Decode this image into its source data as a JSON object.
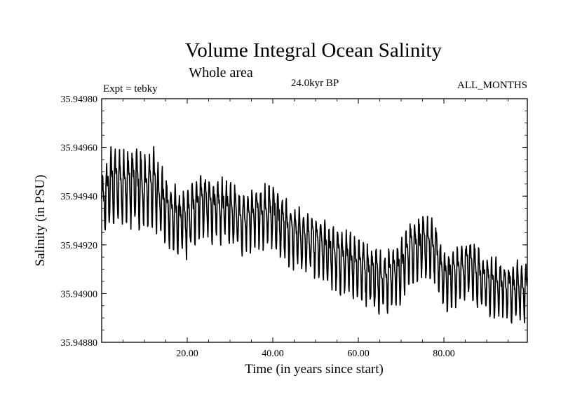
{
  "chart_data": {
    "type": "line",
    "title": "Volume Integral Ocean Salinity",
    "subtitle": "Whole area",
    "experiment": "Expt = tebky",
    "period": "24.0kyr BP",
    "months": "ALL_MONTHS",
    "xlabel": "Time (in years since start)",
    "ylabel": "Salinity (in PSU)",
    "xlim": [
      0,
      99.5
    ],
    "ylim": [
      35.9488,
      35.9498
    ],
    "xticks": [
      20,
      40,
      60,
      80
    ],
    "xtick_labels": [
      "20.00",
      "40.00",
      "60.00",
      "80.00"
    ],
    "yticks": [
      35.9488,
      35.949,
      35.9492,
      35.9494,
      35.9496,
      35.9498
    ],
    "ytick_labels": [
      "35.94880",
      "35.94900",
      "35.94920",
      "35.94940",
      "35.94960",
      "35.94980"
    ],
    "series": [
      {
        "name": "salinity",
        "description": "monthly values, seasonal cycle of 1 year",
        "baseline_points": {
          "x": [
            0,
            2,
            5,
            8,
            10,
            12,
            15,
            18,
            20,
            23,
            26,
            30,
            33,
            36,
            40,
            44,
            48,
            52,
            56,
            60,
            63,
            66,
            70,
            72,
            75,
            78,
            80,
            83,
            86,
            90,
            95,
            99
          ],
          "y": [
            35.94935,
            35.94945,
            35.94945,
            35.94945,
            35.94942,
            35.94945,
            35.94935,
            35.9493,
            35.9493,
            35.94938,
            35.94935,
            35.94935,
            35.9493,
            35.94932,
            35.94933,
            35.94925,
            35.94922,
            35.94918,
            35.94914,
            35.94912,
            35.94908,
            35.94906,
            35.9491,
            35.94918,
            35.9492,
            35.94918,
            35.94906,
            35.94908,
            35.94912,
            35.94904,
            35.94902,
            35.94902
          ]
        },
        "seasonal_amplitude_points": {
          "x": [
            0,
            5,
            10,
            15,
            25,
            40,
            55,
            65,
            75,
            85,
            99
          ],
          "amplitude": [
            0.0002,
            0.00022,
            0.00023,
            0.00019,
            0.00017,
            0.00017,
            0.00017,
            0.00017,
            0.00017,
            0.00016,
            0.00016
          ]
        }
      }
    ]
  }
}
